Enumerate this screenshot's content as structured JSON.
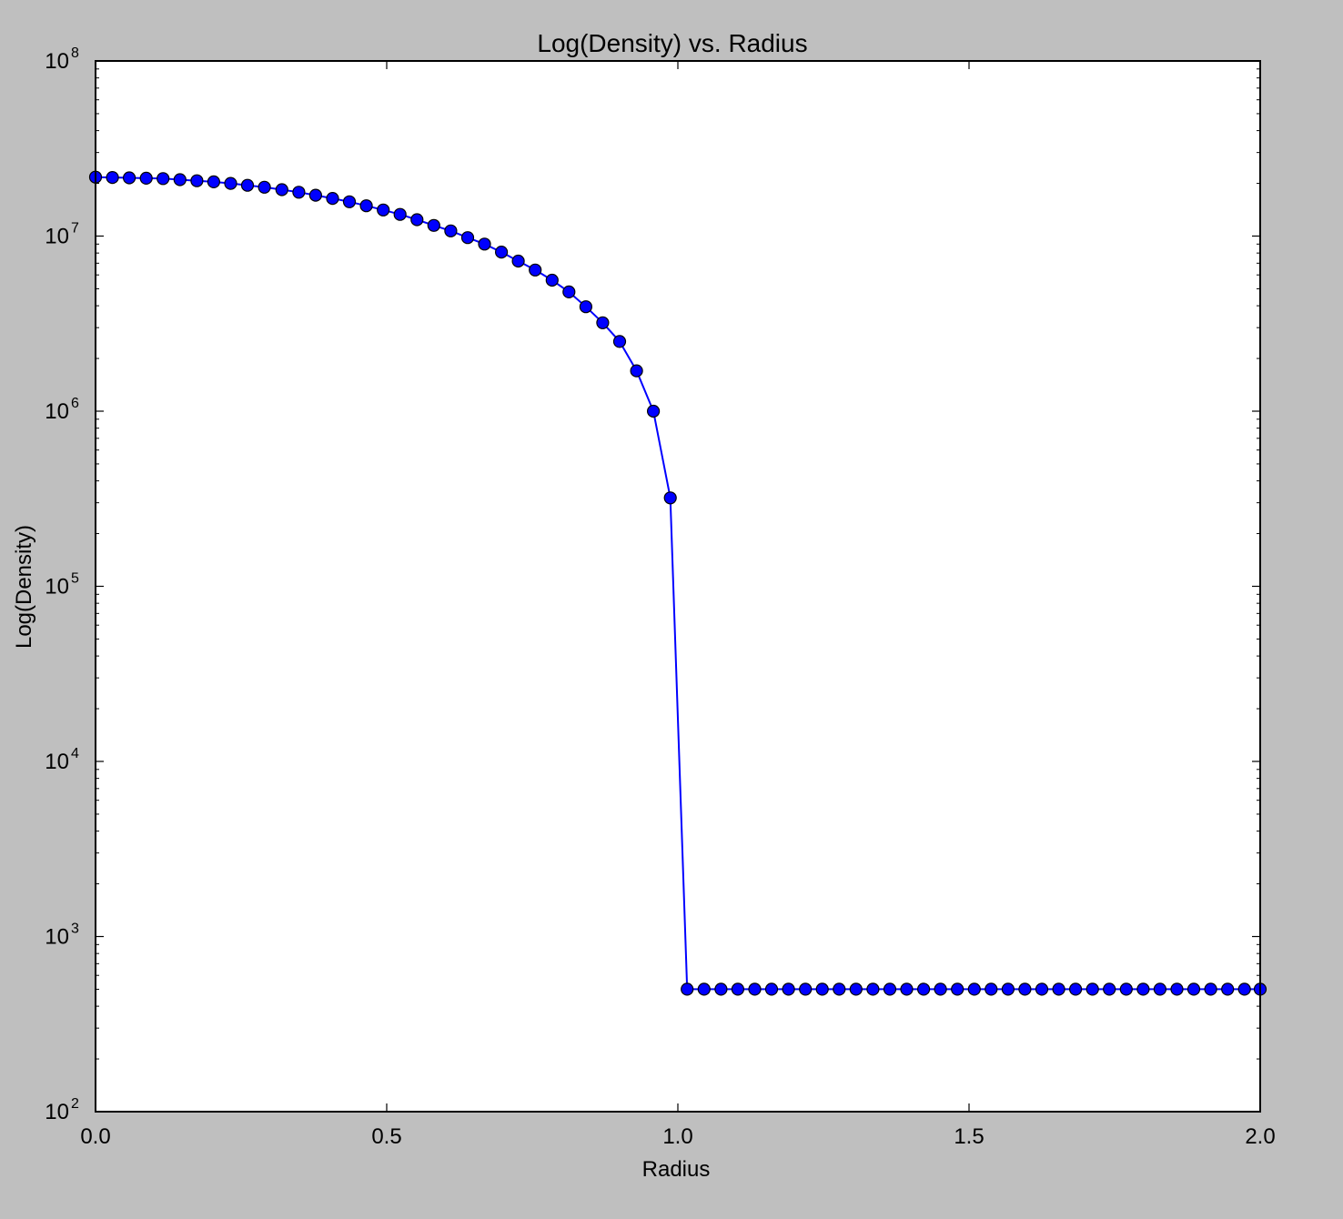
{
  "chart_data": {
    "type": "line",
    "title": "Log(Density) vs. Radius",
    "xlabel": "Radius",
    "ylabel": "Log(Density)",
    "xlim": [
      0.0,
      2.0
    ],
    "ylim": [
      100,
      100000000
    ],
    "yscale": "log",
    "grid": false,
    "x_ticks": [
      "0.0",
      "0.5",
      "1.0",
      "1.5",
      "2.0"
    ],
    "y_ticks": [
      {
        "base": "10",
        "exp": "2"
      },
      {
        "base": "10",
        "exp": "3"
      },
      {
        "base": "10",
        "exp": "4"
      },
      {
        "base": "10",
        "exp": "5"
      },
      {
        "base": "10",
        "exp": "6"
      },
      {
        "base": "10",
        "exp": "7"
      },
      {
        "base": "10",
        "exp": "8"
      }
    ],
    "series": [
      {
        "color": "#0000ff",
        "marker": "circle",
        "x": [
          0.0,
          0.029,
          0.058,
          0.087,
          0.116,
          0.145,
          0.174,
          0.203,
          0.232,
          0.261,
          0.29,
          0.32,
          0.349,
          0.378,
          0.407,
          0.436,
          0.465,
          0.494,
          0.523,
          0.552,
          0.581,
          0.61,
          0.639,
          0.668,
          0.697,
          0.726,
          0.755,
          0.784,
          0.813,
          0.842,
          0.871,
          0.9,
          0.929,
          0.958,
          0.987,
          1.016,
          1.045,
          1.074,
          1.103,
          1.132,
          1.161,
          1.19,
          1.219,
          1.248,
          1.277,
          1.306,
          1.335,
          1.364,
          1.393,
          1.422,
          1.451,
          1.48,
          1.509,
          1.538,
          1.567,
          1.596,
          1.625,
          1.654,
          1.683,
          1.712,
          1.741,
          1.77,
          1.799,
          1.828,
          1.857,
          1.886,
          1.915,
          1.944,
          1.973,
          2.0
        ],
        "y": [
          21700000,
          21600000,
          21500000,
          21400000,
          21300000,
          21000000,
          20700000,
          20400000,
          20000000,
          19500000,
          19000000,
          18400000,
          17800000,
          17100000,
          16400000,
          15700000,
          14900000,
          14100000,
          13300000,
          12400000,
          11500000,
          10700000,
          9800000,
          9000000,
          8100000,
          7200000,
          6400000,
          5600000,
          4800000,
          3950000,
          3200000,
          2500000,
          1700000,
          1000000,
          320000,
          500,
          500,
          500,
          500,
          500,
          500,
          500,
          500,
          500,
          500,
          500,
          500,
          500,
          500,
          500,
          500,
          500,
          500,
          500,
          500,
          500,
          500,
          500,
          500,
          500,
          500,
          500,
          500,
          500,
          500,
          500,
          500,
          500,
          500,
          500
        ]
      }
    ]
  }
}
